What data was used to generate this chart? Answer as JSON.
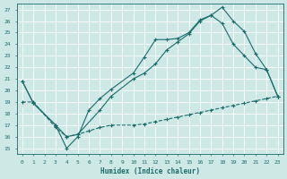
{
  "xlabel": "Humidex (Indice chaleur)",
  "bg_color": "#cde8e5",
  "line_color": "#1a6b6b",
  "grid_color": "#ffffff",
  "xlim": [
    -0.5,
    23.5
  ],
  "ylim": [
    14.5,
    27.5
  ],
  "xticks": [
    0,
    1,
    2,
    3,
    4,
    5,
    6,
    7,
    8,
    9,
    10,
    11,
    12,
    13,
    14,
    15,
    16,
    17,
    18,
    19,
    20,
    21,
    22,
    23
  ],
  "yticks": [
    15,
    16,
    17,
    18,
    19,
    20,
    21,
    22,
    23,
    24,
    25,
    26,
    27
  ],
  "line1_x": [
    0,
    1,
    3,
    4,
    5,
    6,
    7,
    8,
    10,
    11,
    12,
    13,
    14,
    15,
    16,
    17,
    18,
    19,
    20,
    21,
    22,
    23
  ],
  "line1_y": [
    20.8,
    18.9,
    17.0,
    15.0,
    16.0,
    18.3,
    19.3,
    20.1,
    21.5,
    22.9,
    24.4,
    24.4,
    24.5,
    25.0,
    26.1,
    26.5,
    27.2,
    26.0,
    25.1,
    23.2,
    21.8,
    19.5
  ],
  "line2_x": [
    0,
    1,
    3,
    4,
    5,
    7,
    8,
    10,
    11,
    12,
    13,
    14,
    15,
    16,
    17,
    18,
    19,
    20,
    21,
    22,
    23
  ],
  "line2_y": [
    20.8,
    18.9,
    17.0,
    16.0,
    16.2,
    18.3,
    19.5,
    21.0,
    21.5,
    22.3,
    23.5,
    24.2,
    24.9,
    26.0,
    26.5,
    25.8,
    24.0,
    23.0,
    22.0,
    21.8,
    19.5
  ],
  "line3_x": [
    0,
    1,
    3,
    4,
    5,
    6,
    7,
    8,
    10,
    11,
    12,
    13,
    14,
    15,
    16,
    17,
    18,
    19,
    20,
    21,
    22,
    23
  ],
  "line3_y": [
    19.0,
    19.0,
    16.8,
    16.0,
    16.2,
    16.5,
    16.8,
    17.0,
    17.0,
    17.1,
    17.3,
    17.5,
    17.7,
    17.9,
    18.1,
    18.3,
    18.5,
    18.7,
    18.9,
    19.1,
    19.3,
    19.5
  ]
}
